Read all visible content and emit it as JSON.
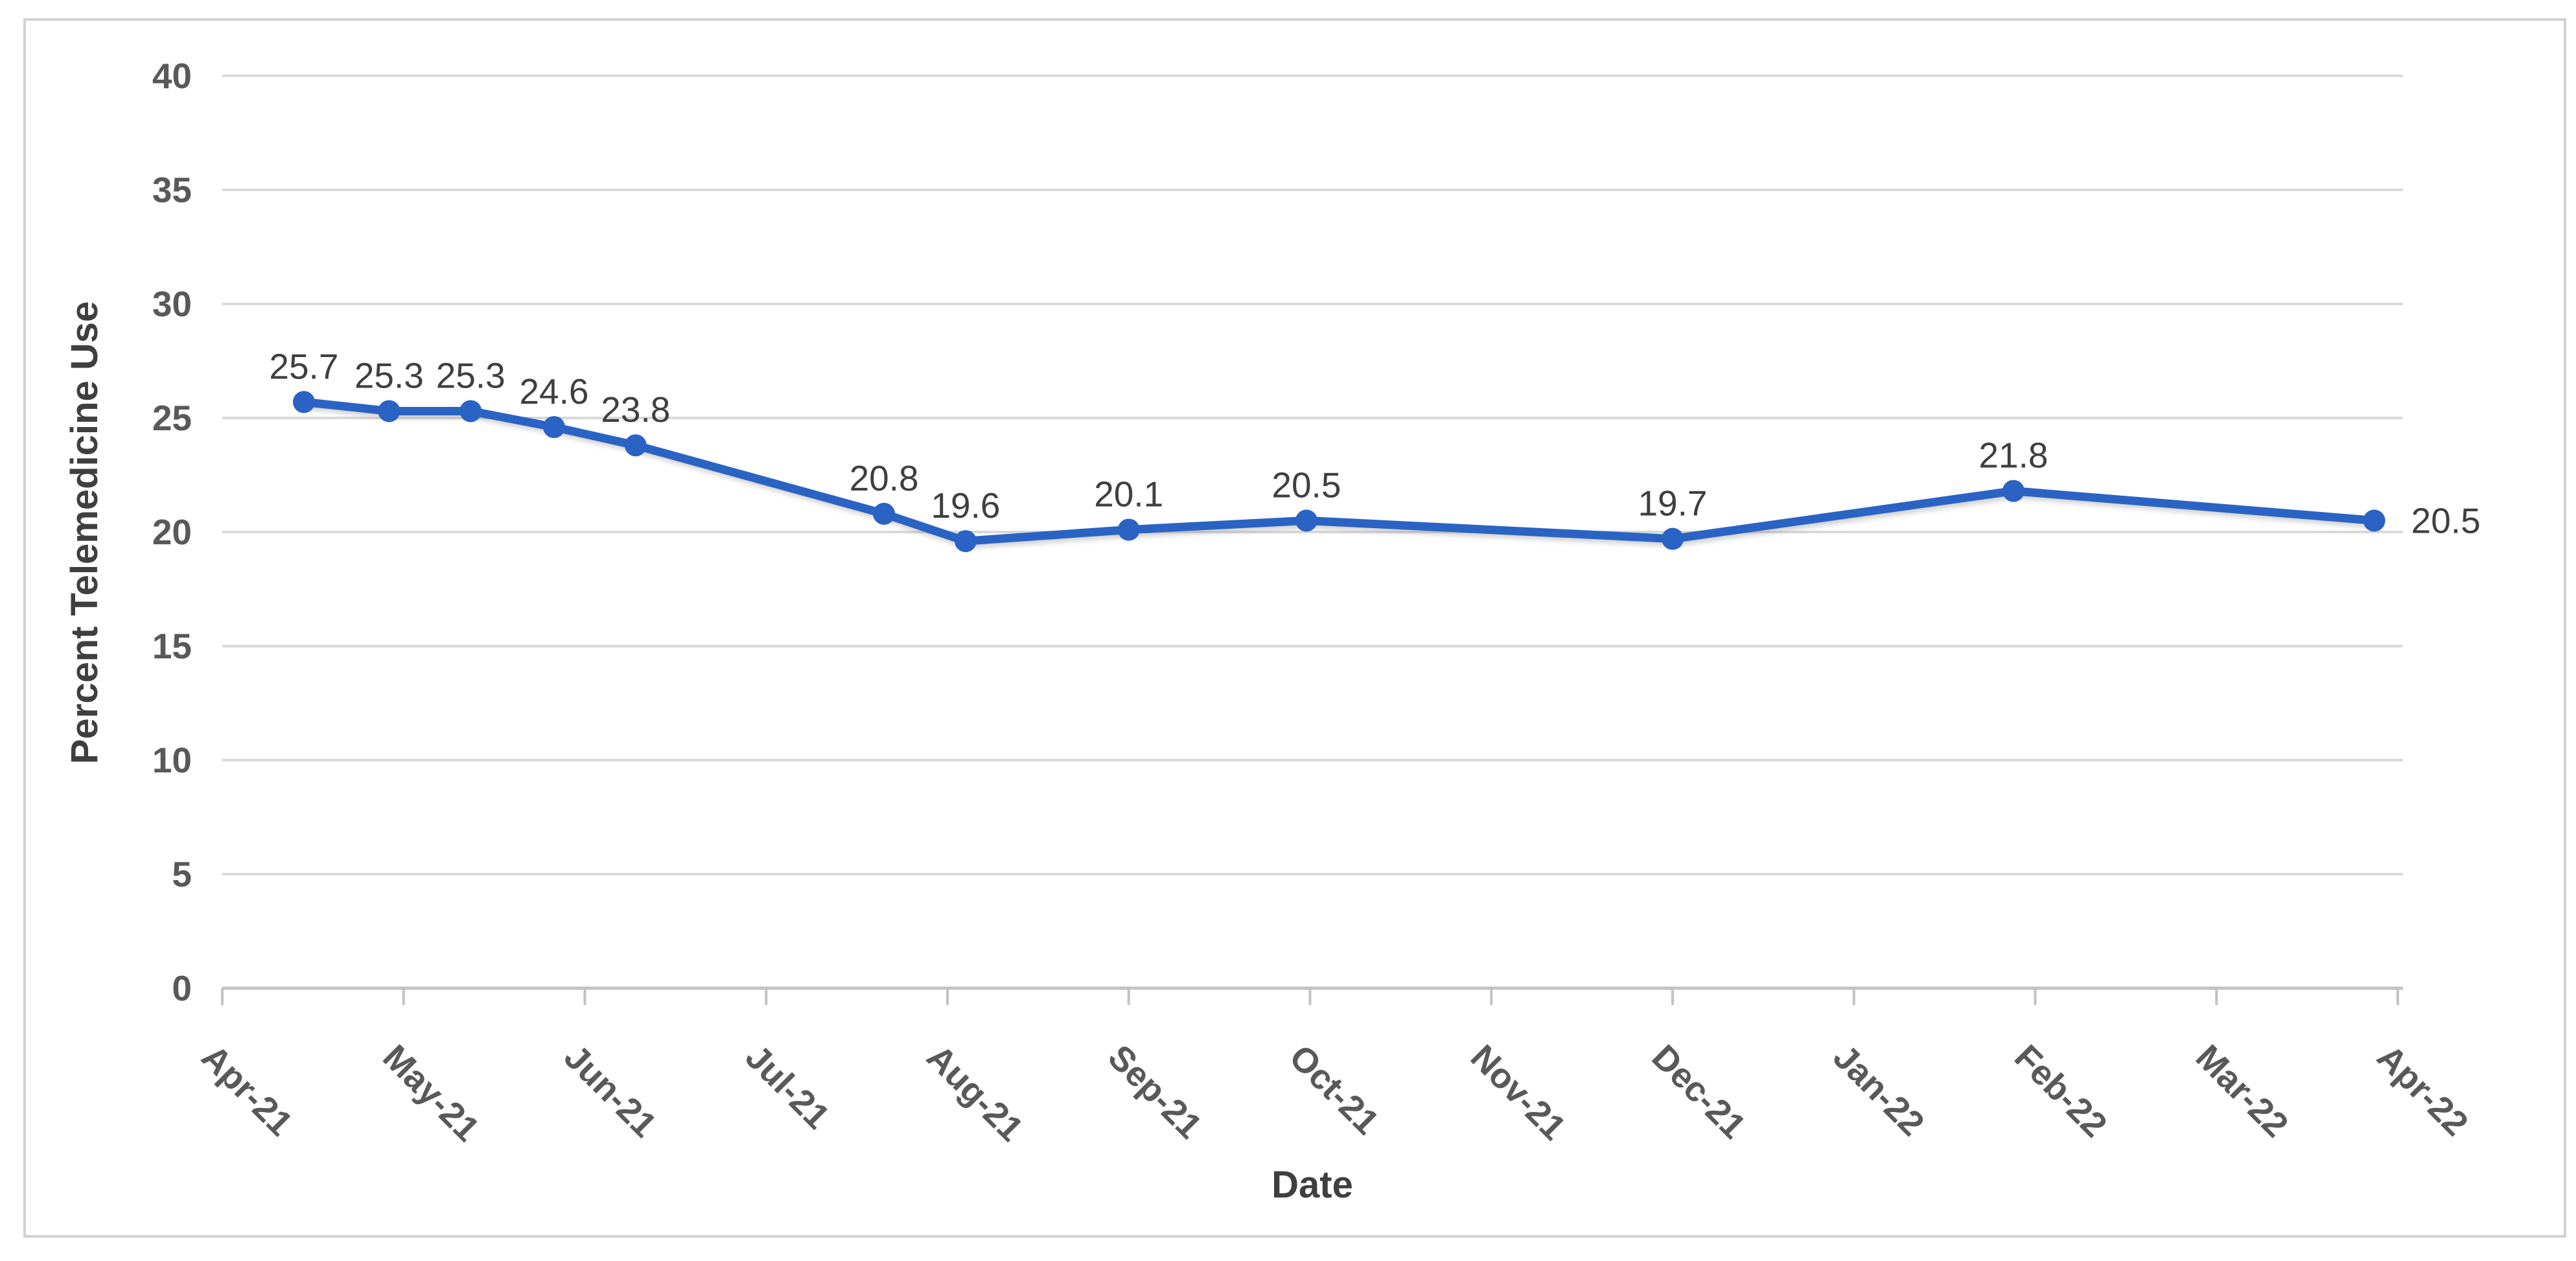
{
  "chart_data": {
    "type": "line",
    "title": "",
    "xlabel": "Date",
    "ylabel": "Percent Telemedicine Use",
    "grid": true,
    "legend": false,
    "y_axis": {
      "min": 0,
      "max": 40,
      "step": 5,
      "ticks": [
        0,
        5,
        10,
        15,
        20,
        25,
        30,
        35,
        40
      ]
    },
    "x_axis": {
      "unit": "months",
      "range_months": [
        0,
        12
      ],
      "tick_labels": [
        "Apr-21",
        "May-21",
        "Jun-21",
        "Jul-21",
        "Aug-21",
        "Sep-21",
        "Oct-21",
        "Nov-21",
        "Dec-21",
        "Jan-22",
        "Feb-22",
        "Mar-22",
        "Apr-22"
      ],
      "label_rotation_deg": 45
    },
    "series": [
      {
        "name": "Percent telemedicine use",
        "color": "#2a63c3",
        "marker": "circle",
        "points": [
          {
            "x_months": 0.45,
            "value": 25.7,
            "label": "25.7",
            "label_pos": "above"
          },
          {
            "x_months": 0.92,
            "value": 25.3,
            "label": "25.3",
            "label_pos": "above"
          },
          {
            "x_months": 1.37,
            "value": 25.3,
            "label": "25.3",
            "label_pos": "above"
          },
          {
            "x_months": 1.83,
            "value": 24.6,
            "label": "24.6",
            "label_pos": "above"
          },
          {
            "x_months": 2.28,
            "value": 23.8,
            "label": "23.8",
            "label_pos": "above"
          },
          {
            "x_months": 3.65,
            "value": 20.8,
            "label": "20.8",
            "label_pos": "above"
          },
          {
            "x_months": 4.1,
            "value": 19.6,
            "label": "19.6",
            "label_pos": "above"
          },
          {
            "x_months": 5.0,
            "value": 20.1,
            "label": "20.1",
            "label_pos": "above"
          },
          {
            "x_months": 5.98,
            "value": 20.5,
            "label": "20.5",
            "label_pos": "above"
          },
          {
            "x_months": 8.0,
            "value": 19.7,
            "label": "19.7",
            "label_pos": "above"
          },
          {
            "x_months": 9.88,
            "value": 21.8,
            "label": "21.8",
            "label_pos": "above"
          },
          {
            "x_months": 11.87,
            "value": 20.5,
            "label": "20.5",
            "label_pos": "right"
          }
        ]
      }
    ]
  },
  "styles": {
    "line_color": "#2a63c3",
    "grid_color": "#d9d9d9",
    "axis_color": "#c2c2c2",
    "tick_label_color": "#595959",
    "data_label_color": "#3f3f3f",
    "axis_title_color": "#3f3f3f",
    "border_color": "#d2d2d2",
    "background": "#ffffff"
  }
}
